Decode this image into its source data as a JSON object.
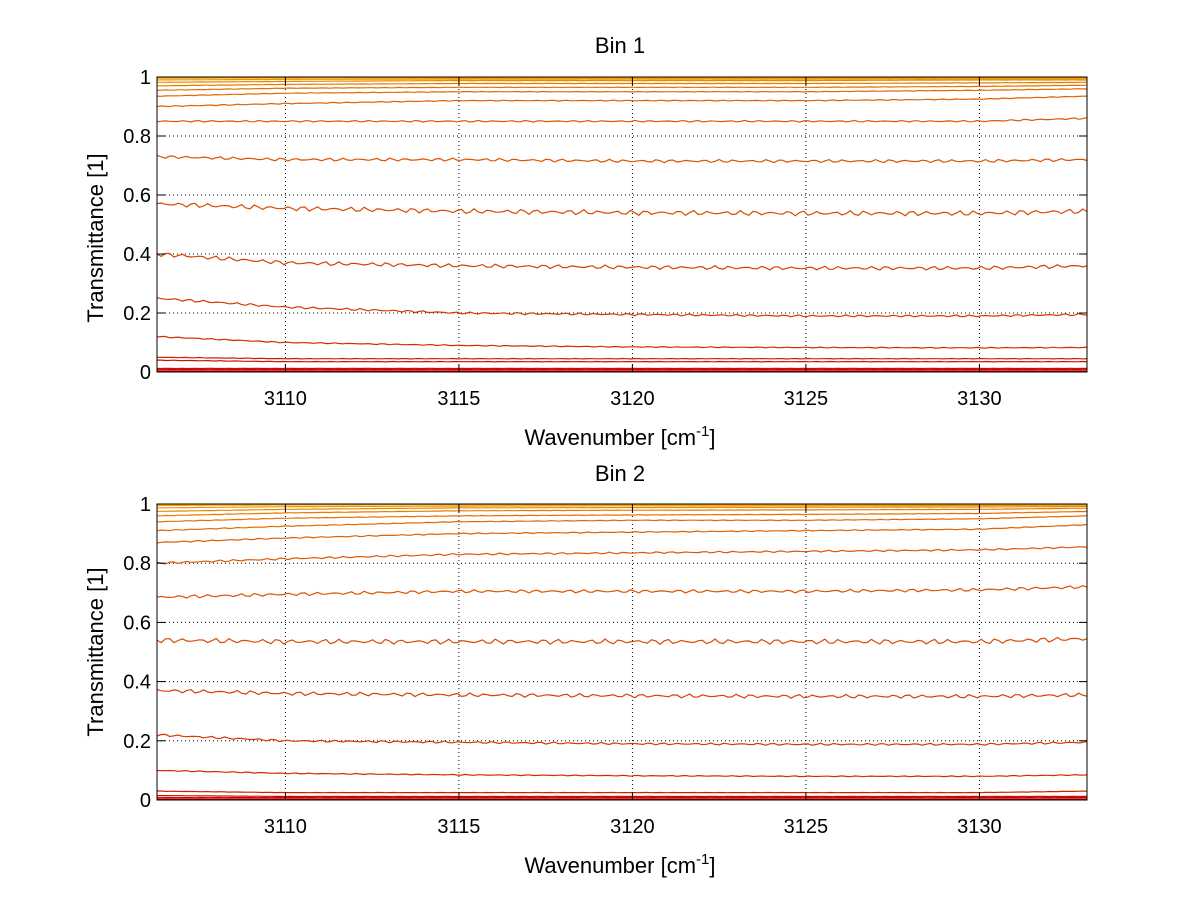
{
  "chart_data": [
    {
      "type": "line",
      "title": "Bin 1",
      "xlabel": "Wavenumber [cm",
      "xlabel_superscript": "-1",
      "xlabel_suffix": "]",
      "ylabel": "Transmittance [1]",
      "xlim": [
        3106.3,
        3133.1
      ],
      "ylim": [
        0,
        1
      ],
      "xticks": [
        3110,
        3115,
        3120,
        3125,
        3130
      ],
      "xtick_labels": [
        "3110",
        "3115",
        "3120",
        "3125",
        "3130"
      ],
      "yticks": [
        0,
        0.2,
        0.4,
        0.6,
        0.8,
        1
      ],
      "ytick_labels": [
        "0",
        "0.2",
        "0.4",
        "0.6",
        "0.8",
        "1"
      ],
      "grid": true,
      "x_samples": [
        3106.3,
        3110,
        3115,
        3120,
        3125,
        3130,
        3133.1
      ],
      "series": [
        {
          "color": "#cc0000",
          "values": [
            0.003,
            0.003,
            0.003,
            0.003,
            0.003,
            0.003,
            0.003
          ]
        },
        {
          "color": "#cc0000",
          "values": [
            0.008,
            0.008,
            0.008,
            0.008,
            0.008,
            0.008,
            0.008
          ]
        },
        {
          "color": "#cc1000",
          "values": [
            0.012,
            0.012,
            0.012,
            0.012,
            0.012,
            0.012,
            0.012
          ]
        },
        {
          "color": "#cc1000",
          "values": [
            0.04,
            0.035,
            0.035,
            0.035,
            0.035,
            0.035,
            0.035
          ]
        },
        {
          "color": "#cc2000",
          "values": [
            0.05,
            0.045,
            0.045,
            0.045,
            0.045,
            0.045,
            0.045
          ]
        },
        {
          "color": "#d42c00",
          "values": [
            0.12,
            0.1,
            0.09,
            0.085,
            0.083,
            0.082,
            0.083
          ]
        },
        {
          "color": "#d63800",
          "values": [
            0.25,
            0.22,
            0.2,
            0.195,
            0.19,
            0.19,
            0.195
          ]
        },
        {
          "color": "#d84000",
          "values": [
            0.4,
            0.37,
            0.36,
            0.355,
            0.352,
            0.352,
            0.36
          ]
        },
        {
          "color": "#da4a00",
          "values": [
            0.57,
            0.555,
            0.545,
            0.54,
            0.538,
            0.538,
            0.545
          ]
        },
        {
          "color": "#dc5200",
          "values": [
            0.73,
            0.72,
            0.72,
            0.715,
            0.715,
            0.715,
            0.72
          ]
        },
        {
          "color": "#de5a00",
          "values": [
            0.85,
            0.85,
            0.85,
            0.85,
            0.85,
            0.85,
            0.86
          ]
        },
        {
          "color": "#e06200",
          "values": [
            0.9,
            0.91,
            0.92,
            0.92,
            0.92,
            0.925,
            0.935
          ]
        },
        {
          "color": "#e26a00",
          "values": [
            0.935,
            0.945,
            0.95,
            0.95,
            0.95,
            0.955,
            0.96
          ]
        },
        {
          "color": "#e47200",
          "values": [
            0.955,
            0.962,
            0.965,
            0.965,
            0.965,
            0.968,
            0.972
          ]
        },
        {
          "color": "#e87c00",
          "values": [
            0.97,
            0.975,
            0.978,
            0.978,
            0.978,
            0.98,
            0.982
          ]
        },
        {
          "color": "#ec8800",
          "values": [
            0.982,
            0.985,
            0.988,
            0.988,
            0.988,
            0.99,
            0.99
          ]
        },
        {
          "color": "#f09400",
          "values": [
            0.99,
            0.992,
            0.993,
            0.993,
            0.993,
            0.994,
            0.994
          ]
        },
        {
          "color": "#f4a000",
          "values": [
            0.996,
            0.997,
            0.997,
            0.997,
            0.997,
            0.997,
            0.997
          ]
        },
        {
          "color": "#f8aa00",
          "values": [
            0.999,
            0.999,
            0.999,
            0.999,
            0.999,
            0.999,
            0.999
          ]
        }
      ]
    },
    {
      "type": "line",
      "title": "Bin 2",
      "xlabel": "Wavenumber [cm",
      "xlabel_superscript": "-1",
      "xlabel_suffix": "]",
      "ylabel": "Transmittance [1]",
      "xlim": [
        3106.3,
        3133.1
      ],
      "ylim": [
        0,
        1
      ],
      "xticks": [
        3110,
        3115,
        3120,
        3125,
        3130
      ],
      "xtick_labels": [
        "3110",
        "3115",
        "3120",
        "3125",
        "3130"
      ],
      "yticks": [
        0,
        0.2,
        0.4,
        0.6,
        0.8,
        1
      ],
      "ytick_labels": [
        "0",
        "0.2",
        "0.4",
        "0.6",
        "0.8",
        "1"
      ],
      "grid": true,
      "x_samples": [
        3106.3,
        3110,
        3115,
        3120,
        3125,
        3130,
        3133.1
      ],
      "series": [
        {
          "color": "#cc0000",
          "values": [
            0.003,
            0.003,
            0.003,
            0.003,
            0.003,
            0.003,
            0.003
          ]
        },
        {
          "color": "#cc0000",
          "values": [
            0.008,
            0.008,
            0.008,
            0.008,
            0.008,
            0.008,
            0.008
          ]
        },
        {
          "color": "#cc1000",
          "values": [
            0.015,
            0.012,
            0.012,
            0.012,
            0.012,
            0.012,
            0.012
          ]
        },
        {
          "color": "#cc2000",
          "values": [
            0.03,
            0.025,
            0.025,
            0.025,
            0.025,
            0.025,
            0.03
          ]
        },
        {
          "color": "#d42c00",
          "values": [
            0.1,
            0.09,
            0.085,
            0.082,
            0.08,
            0.08,
            0.085
          ]
        },
        {
          "color": "#d63800",
          "values": [
            0.22,
            0.2,
            0.195,
            0.19,
            0.188,
            0.188,
            0.195
          ]
        },
        {
          "color": "#d84000",
          "values": [
            0.37,
            0.36,
            0.355,
            0.352,
            0.35,
            0.35,
            0.355
          ]
        },
        {
          "color": "#da4a00",
          "values": [
            0.54,
            0.535,
            0.535,
            0.535,
            0.535,
            0.535,
            0.545
          ]
        },
        {
          "color": "#dc5200",
          "values": [
            0.685,
            0.695,
            0.705,
            0.705,
            0.705,
            0.71,
            0.72
          ]
        },
        {
          "color": "#de5a00",
          "values": [
            0.8,
            0.815,
            0.83,
            0.835,
            0.84,
            0.845,
            0.855
          ]
        },
        {
          "color": "#e06200",
          "values": [
            0.87,
            0.885,
            0.9,
            0.905,
            0.91,
            0.915,
            0.93
          ]
        },
        {
          "color": "#e26a00",
          "values": [
            0.91,
            0.925,
            0.94,
            0.945,
            0.945,
            0.95,
            0.96
          ]
        },
        {
          "color": "#e47200",
          "values": [
            0.94,
            0.952,
            0.96,
            0.963,
            0.965,
            0.968,
            0.975
          ]
        },
        {
          "color": "#e87c00",
          "values": [
            0.96,
            0.97,
            0.977,
            0.979,
            0.98,
            0.982,
            0.986
          ]
        },
        {
          "color": "#ec8800",
          "values": [
            0.975,
            0.982,
            0.987,
            0.988,
            0.989,
            0.99,
            0.992
          ]
        },
        {
          "color": "#f09400",
          "values": [
            0.987,
            0.991,
            0.993,
            0.994,
            0.994,
            0.995,
            0.996
          ]
        },
        {
          "color": "#f4a000",
          "values": [
            0.995,
            0.997,
            0.998,
            0.998,
            0.998,
            0.998,
            0.998
          ]
        },
        {
          "color": "#f8aa00",
          "values": [
            0.999,
            0.999,
            0.999,
            0.999,
            0.999,
            0.999,
            0.999
          ]
        }
      ]
    }
  ]
}
